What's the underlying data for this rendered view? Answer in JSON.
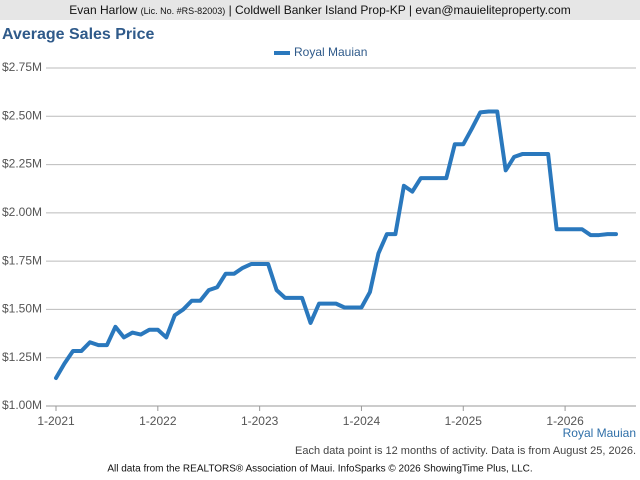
{
  "header": {
    "name": "Evan Harlow",
    "license": "(Lic. No. #RS-82003)",
    "details": "| Coldwell Banker Island Prop-KP | evan@mauieliteproperty.com"
  },
  "chart_data": {
    "type": "line",
    "title": "Average Sales Price",
    "categories": [
      "1-2021",
      null,
      null,
      null,
      null,
      null,
      null,
      null,
      null,
      null,
      null,
      null,
      "1-2022",
      null,
      null,
      null,
      null,
      null,
      null,
      null,
      null,
      null,
      null,
      null,
      "1-2023",
      null,
      null,
      null,
      null,
      null,
      null,
      null,
      null,
      null,
      null,
      null,
      "1-2024",
      null,
      null,
      null,
      null,
      null,
      null,
      null,
      null,
      null,
      null,
      null,
      "1-2025",
      null,
      null,
      null,
      null,
      null,
      null,
      null,
      null,
      null,
      null,
      null,
      "1-2026",
      null,
      null,
      null,
      null,
      null,
      null
    ],
    "series": [
      {
        "name": "Royal Mauian",
        "color": "#2a78bd",
        "values": [
          1.145,
          1.22,
          1.285,
          1.285,
          1.33,
          1.315,
          1.315,
          1.41,
          1.355,
          1.38,
          1.37,
          1.395,
          1.395,
          1.355,
          1.47,
          1.5,
          1.545,
          1.545,
          1.6,
          1.615,
          1.685,
          1.685,
          1.715,
          1.735,
          1.735,
          1.735,
          1.6,
          1.56,
          1.56,
          1.56,
          1.43,
          1.53,
          1.53,
          1.53,
          1.51,
          1.51,
          1.51,
          1.59,
          1.79,
          1.89,
          1.89,
          2.14,
          2.11,
          2.18,
          2.18,
          2.18,
          2.18,
          2.355,
          2.355,
          2.435,
          2.52,
          2.525,
          2.525,
          2.22,
          2.29,
          2.305,
          2.305,
          2.305,
          2.305,
          1.915,
          1.915,
          1.915,
          1.915,
          1.885,
          1.885,
          1.89,
          1.89
        ]
      }
    ],
    "ylim": [
      1.0,
      2.75
    ],
    "yticks": [
      {
        "value": 1.0,
        "label": "$1.00M"
      },
      {
        "value": 1.25,
        "label": "$1.25M"
      },
      {
        "value": 1.5,
        "label": "$1.50M"
      },
      {
        "value": 1.75,
        "label": "$1.75M"
      },
      {
        "value": 2.0,
        "label": "$2.00M"
      },
      {
        "value": 2.25,
        "label": "$2.25M"
      },
      {
        "value": 2.5,
        "label": "$2.50M"
      },
      {
        "value": 2.75,
        "label": "$2.75M"
      }
    ],
    "grid": true,
    "legend": "top",
    "x_label": "Royal Mauian",
    "note": "Each data point is 12 months of activity. Data is from August 25, 2026."
  },
  "footer": "All data from the REALTORS® Association of Maui. InfoSparks © 2026 ShowingTime Plus, LLC."
}
